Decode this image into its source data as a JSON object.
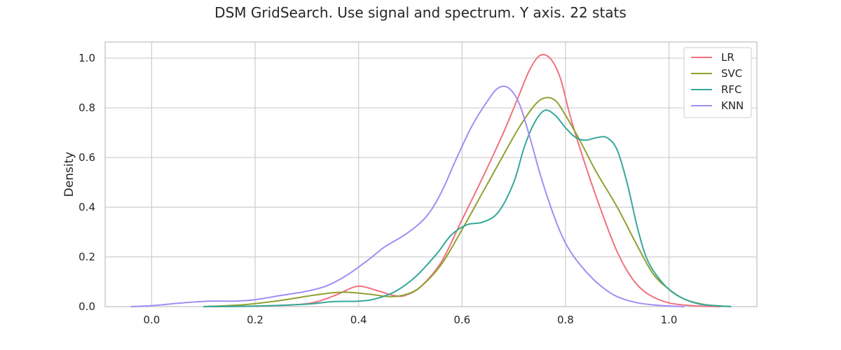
{
  "chart_data": {
    "type": "line",
    "title": "DSM GridSearch. Use signal and spectrum. Y axis. 22 stats",
    "xlabel": "",
    "ylabel": "Density",
    "xlim": [
      -0.09,
      1.17
    ],
    "ylim": [
      0,
      1.065
    ],
    "xticks": [
      0.0,
      0.2,
      0.4,
      0.6,
      0.8,
      1.0
    ],
    "xtick_labels": [
      "0.0",
      "0.2",
      "0.4",
      "0.6",
      "0.8",
      "1.0"
    ],
    "yticks": [
      0.0,
      0.2,
      0.4,
      0.6,
      0.8,
      1.0
    ],
    "ytick_labels": [
      "0.0",
      "0.2",
      "0.4",
      "0.6",
      "0.8",
      "1.0"
    ],
    "grid": true,
    "legend_position": "top-right",
    "series": [
      {
        "name": "LR",
        "color": "#f0717f",
        "points": [
          [
            0.1,
            0.0
          ],
          [
            0.2,
            0.002
          ],
          [
            0.28,
            0.008
          ],
          [
            0.32,
            0.02
          ],
          [
            0.36,
            0.05
          ],
          [
            0.39,
            0.078
          ],
          [
            0.41,
            0.08
          ],
          [
            0.44,
            0.062
          ],
          [
            0.47,
            0.044
          ],
          [
            0.49,
            0.045
          ],
          [
            0.52,
            0.08
          ],
          [
            0.56,
            0.18
          ],
          [
            0.6,
            0.35
          ],
          [
            0.64,
            0.52
          ],
          [
            0.68,
            0.7
          ],
          [
            0.71,
            0.85
          ],
          [
            0.73,
            0.95
          ],
          [
            0.75,
            1.01
          ],
          [
            0.77,
            1.0
          ],
          [
            0.79,
            0.92
          ],
          [
            0.81,
            0.76
          ],
          [
            0.84,
            0.56
          ],
          [
            0.87,
            0.38
          ],
          [
            0.9,
            0.22
          ],
          [
            0.93,
            0.11
          ],
          [
            0.96,
            0.05
          ],
          [
            1.0,
            0.015
          ],
          [
            1.05,
            0.003
          ],
          [
            1.1,
            0.0
          ]
        ]
      },
      {
        "name": "SVC",
        "color": "#8fa130",
        "points": [
          [
            0.1,
            0.0
          ],
          [
            0.18,
            0.008
          ],
          [
            0.25,
            0.025
          ],
          [
            0.32,
            0.048
          ],
          [
            0.37,
            0.058
          ],
          [
            0.42,
            0.05
          ],
          [
            0.46,
            0.04
          ],
          [
            0.49,
            0.048
          ],
          [
            0.52,
            0.08
          ],
          [
            0.56,
            0.17
          ],
          [
            0.6,
            0.31
          ],
          [
            0.64,
            0.46
          ],
          [
            0.68,
            0.61
          ],
          [
            0.71,
            0.72
          ],
          [
            0.74,
            0.81
          ],
          [
            0.76,
            0.84
          ],
          [
            0.78,
            0.83
          ],
          [
            0.8,
            0.77
          ],
          [
            0.83,
            0.66
          ],
          [
            0.86,
            0.54
          ],
          [
            0.9,
            0.4
          ],
          [
            0.94,
            0.24
          ],
          [
            0.97,
            0.13
          ],
          [
            1.0,
            0.07
          ],
          [
            1.03,
            0.03
          ],
          [
            1.07,
            0.008
          ],
          [
            1.12,
            0.0
          ]
        ]
      },
      {
        "name": "RFC",
        "color": "#34a89a",
        "points": [
          [
            0.1,
            0.0
          ],
          [
            0.2,
            0.002
          ],
          [
            0.3,
            0.01
          ],
          [
            0.35,
            0.02
          ],
          [
            0.4,
            0.022
          ],
          [
            0.43,
            0.03
          ],
          [
            0.47,
            0.06
          ],
          [
            0.51,
            0.12
          ],
          [
            0.55,
            0.21
          ],
          [
            0.58,
            0.29
          ],
          [
            0.61,
            0.33
          ],
          [
            0.64,
            0.34
          ],
          [
            0.67,
            0.38
          ],
          [
            0.7,
            0.5
          ],
          [
            0.72,
            0.64
          ],
          [
            0.74,
            0.74
          ],
          [
            0.76,
            0.79
          ],
          [
            0.78,
            0.77
          ],
          [
            0.8,
            0.72
          ],
          [
            0.82,
            0.68
          ],
          [
            0.84,
            0.67
          ],
          [
            0.86,
            0.68
          ],
          [
            0.88,
            0.68
          ],
          [
            0.9,
            0.63
          ],
          [
            0.92,
            0.49
          ],
          [
            0.94,
            0.31
          ],
          [
            0.96,
            0.18
          ],
          [
            0.99,
            0.09
          ],
          [
            1.02,
            0.04
          ],
          [
            1.06,
            0.01
          ],
          [
            1.12,
            0.0
          ]
        ]
      },
      {
        "name": "KNN",
        "color": "#a48cf4",
        "points": [
          [
            -0.04,
            0.0
          ],
          [
            0.0,
            0.004
          ],
          [
            0.06,
            0.015
          ],
          [
            0.11,
            0.022
          ],
          [
            0.16,
            0.022
          ],
          [
            0.2,
            0.028
          ],
          [
            0.25,
            0.045
          ],
          [
            0.3,
            0.062
          ],
          [
            0.34,
            0.085
          ],
          [
            0.38,
            0.13
          ],
          [
            0.42,
            0.19
          ],
          [
            0.45,
            0.24
          ],
          [
            0.49,
            0.29
          ],
          [
            0.53,
            0.36
          ],
          [
            0.56,
            0.46
          ],
          [
            0.59,
            0.6
          ],
          [
            0.62,
            0.73
          ],
          [
            0.65,
            0.83
          ],
          [
            0.67,
            0.88
          ],
          [
            0.69,
            0.88
          ],
          [
            0.71,
            0.82
          ],
          [
            0.73,
            0.69
          ],
          [
            0.75,
            0.54
          ],
          [
            0.77,
            0.41
          ],
          [
            0.79,
            0.3
          ],
          [
            0.81,
            0.22
          ],
          [
            0.84,
            0.14
          ],
          [
            0.87,
            0.08
          ],
          [
            0.9,
            0.04
          ],
          [
            0.94,
            0.015
          ],
          [
            0.98,
            0.005
          ],
          [
            1.03,
            0.0
          ]
        ]
      }
    ]
  }
}
